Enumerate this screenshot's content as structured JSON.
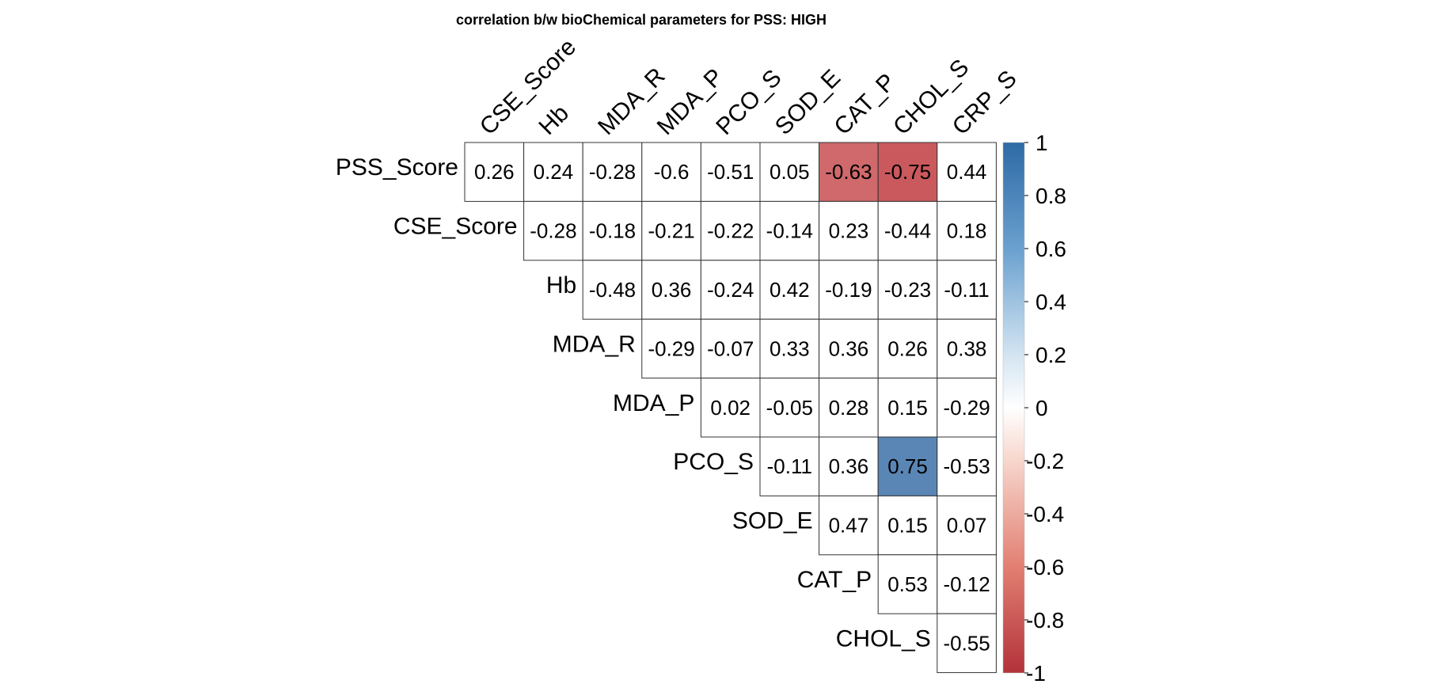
{
  "chart_data": {
    "type": "heatmap",
    "title": "correlation b/w bioChemical parameters for PSS: HIGH",
    "rows": [
      "PSS_Score",
      "CSE_Score",
      "Hb",
      "MDA_R",
      "MDA_P",
      "PCO_S",
      "SOD_E",
      "CAT_P",
      "CHOL_S"
    ],
    "columns": [
      "CSE_Score",
      "Hb",
      "MDA_R",
      "MDA_P",
      "PCO_S",
      "SOD_E",
      "CAT_P",
      "CHOL_S",
      "CRP_S"
    ],
    "values": [
      [
        0.26,
        0.24,
        -0.28,
        -0.6,
        -0.51,
        0.05,
        -0.63,
        -0.75,
        0.44
      ],
      [
        null,
        -0.28,
        -0.18,
        -0.21,
        -0.22,
        -0.14,
        0.23,
        -0.44,
        0.18
      ],
      [
        null,
        null,
        -0.48,
        0.36,
        -0.24,
        0.42,
        -0.19,
        -0.23,
        -0.11
      ],
      [
        null,
        null,
        null,
        -0.29,
        -0.07,
        0.33,
        0.36,
        0.26,
        0.38
      ],
      [
        null,
        null,
        null,
        null,
        0.02,
        -0.05,
        0.28,
        0.15,
        -0.29
      ],
      [
        null,
        null,
        null,
        null,
        null,
        -0.11,
        0.36,
        0.75,
        -0.53
      ],
      [
        null,
        null,
        null,
        null,
        null,
        null,
        0.47,
        0.15,
        0.07
      ],
      [
        null,
        null,
        null,
        null,
        null,
        null,
        null,
        0.53,
        -0.12
      ],
      [
        null,
        null,
        null,
        null,
        null,
        null,
        null,
        null,
        -0.55
      ]
    ],
    "display_labels": [
      [
        "0.26",
        "0.24",
        "-0.28",
        "-0.6",
        "-0.51",
        "0.05",
        "-0.63",
        "-0.75",
        "0.44"
      ],
      [
        null,
        "-0.28",
        "-0.18",
        "-0.21",
        "-0.22",
        "-0.14",
        "0.23",
        "-0.44",
        "0.18"
      ],
      [
        null,
        null,
        "-0.48",
        "0.36",
        "-0.24",
        "0.42",
        "-0.19",
        "-0.23",
        "-0.11"
      ],
      [
        null,
        null,
        null,
        "-0.29",
        "-0.07",
        "0.33",
        "0.36",
        "0.26",
        "0.38"
      ],
      [
        null,
        null,
        null,
        null,
        "0.02",
        "-0.05",
        "0.28",
        "0.15",
        "-0.29"
      ],
      [
        null,
        null,
        null,
        null,
        null,
        "-0.11",
        "0.36",
        "0.75",
        "-0.53"
      ],
      [
        null,
        null,
        null,
        null,
        null,
        null,
        "0.47",
        "0.15",
        "0.07"
      ],
      [
        null,
        null,
        null,
        null,
        null,
        null,
        null,
        "0.53",
        "-0.12"
      ],
      [
        null,
        null,
        null,
        null,
        null,
        null,
        null,
        null,
        "-0.55"
      ]
    ],
    "highlighted_cells": [
      [
        0,
        6
      ],
      [
        0,
        7
      ],
      [
        5,
        7
      ]
    ],
    "color_scale": {
      "min": -1,
      "max": 1,
      "negative_color": "#C0393D",
      "zero_color": "#FFFFFF",
      "positive_color": "#3A6FA8",
      "ticks": [
        "1",
        "0.8",
        "0.6",
        "0.4",
        "0.2",
        "0",
        "-0.2",
        "-0.4",
        "-0.6",
        "-0.8",
        "-1"
      ]
    },
    "legend_placement": "right",
    "grid": true
  }
}
